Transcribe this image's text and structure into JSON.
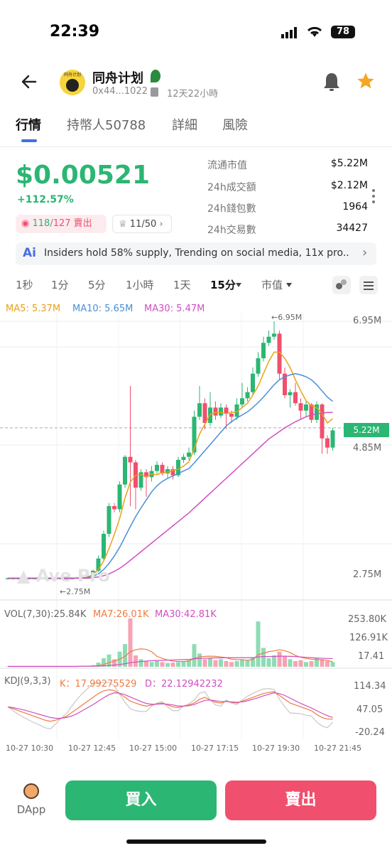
{
  "status": {
    "time": "22:39",
    "battery": "78"
  },
  "header": {
    "title": "同舟计划",
    "address": "0x44...1022",
    "age": "12天22小時",
    "logo_text": "同舟计划"
  },
  "tabs": [
    "行情",
    "持幣人50788",
    "詳細",
    "風險"
  ],
  "price": {
    "value": "$0.00521",
    "change": "+112.57%"
  },
  "trades": {
    "buy": "118",
    "separator": "/",
    "sell": "127",
    "sell_label": "賣出",
    "holders": "11/50"
  },
  "stats": [
    {
      "label": "流通市值",
      "value": "$5.22M"
    },
    {
      "label": "24h成交額",
      "value": "$2.12M"
    },
    {
      "label": "24h錢包數",
      "value": "1964"
    },
    {
      "label": "24h交易數",
      "value": "34427"
    }
  ],
  "ai_text": "Insiders hold 58% supply, Trending on social media, 11x pro...",
  "ai_label": "Ai",
  "timeframes": [
    "1秒",
    "1分",
    "5分",
    "1小時",
    "1天",
    "15分",
    "市值"
  ],
  "ma": {
    "ma5": "MA5: 5.37M",
    "ma10": "MA10: 5.65M",
    "ma30": "MA30: 5.47M"
  },
  "colors": {
    "up": "#2bb673",
    "down": "#f0506e",
    "ma5": "#e8a317",
    "ma10": "#4a8fd6",
    "ma30": "#d04fc2"
  },
  "chart_data": {
    "type": "candlestick",
    "y_axis": [
      "6.95M",
      "4.85M",
      "2.75M"
    ],
    "current_price_label": "5.22M",
    "high_marker": "←6.95M",
    "low_marker": "←2.75M",
    "watermark": "Ave Pro",
    "candles": [
      [
        2.78,
        2.78,
        2.79,
        2.77
      ],
      [
        2.78,
        2.78,
        2.79,
        2.77
      ],
      [
        2.78,
        2.78,
        2.79,
        2.77
      ],
      [
        2.78,
        2.78,
        2.79,
        2.77
      ],
      [
        2.78,
        2.78,
        2.79,
        2.77
      ],
      [
        2.78,
        2.78,
        2.79,
        2.77
      ],
      [
        2.78,
        2.78,
        2.79,
        2.77
      ],
      [
        2.78,
        2.78,
        2.79,
        2.77
      ],
      [
        2.78,
        2.78,
        2.79,
        2.77
      ],
      [
        2.78,
        2.78,
        2.79,
        2.77
      ],
      [
        2.78,
        2.78,
        2.79,
        2.77
      ],
      [
        2.78,
        2.78,
        2.79,
        2.77
      ],
      [
        2.78,
        2.78,
        2.79,
        2.77
      ],
      [
        2.78,
        2.79,
        2.8,
        2.77
      ],
      [
        2.79,
        2.8,
        2.81,
        2.78
      ],
      [
        2.8,
        2.82,
        2.83,
        2.79
      ],
      [
        2.82,
        2.9,
        2.92,
        2.8
      ],
      [
        2.9,
        3.1,
        3.15,
        2.88
      ],
      [
        3.1,
        3.5,
        3.55,
        3.05
      ],
      [
        3.5,
        3.95,
        4.0,
        3.45
      ],
      [
        3.95,
        3.9,
        4.0,
        3.85
      ],
      [
        3.9,
        4.3,
        4.35,
        3.85
      ],
      [
        4.3,
        4.75,
        4.78,
        4.25
      ],
      [
        4.75,
        4.66,
        5.9,
        3.95
      ],
      [
        4.66,
        4.25,
        4.7,
        3.9
      ],
      [
        4.25,
        4.5,
        4.55,
        4.2
      ],
      [
        4.5,
        4.42,
        4.55,
        4.1
      ],
      [
        4.42,
        4.52,
        4.6,
        4.35
      ],
      [
        4.52,
        4.62,
        4.68,
        4.48
      ],
      [
        4.62,
        4.48,
        4.66,
        4.45
      ],
      [
        4.48,
        4.55,
        4.6,
        4.4
      ],
      [
        4.55,
        4.45,
        4.6,
        4.38
      ],
      [
        4.45,
        4.7,
        4.75,
        4.42
      ],
      [
        4.7,
        4.75,
        4.8,
        4.65
      ],
      [
        4.75,
        4.82,
        4.9,
        4.7
      ],
      [
        4.82,
        5.4,
        5.5,
        4.78
      ],
      [
        5.4,
        5.62,
        5.9,
        5.35
      ],
      [
        5.62,
        5.3,
        5.7,
        5.2
      ],
      [
        5.3,
        5.55,
        5.8,
        5.25
      ],
      [
        5.55,
        5.42,
        5.65,
        5.35
      ],
      [
        5.42,
        5.55,
        5.62,
        5.38
      ],
      [
        5.55,
        5.45,
        5.6,
        5.2
      ],
      [
        5.45,
        5.4,
        5.5,
        5.3
      ],
      [
        5.4,
        5.6,
        5.7,
        5.35
      ],
      [
        5.6,
        5.7,
        5.95,
        5.55
      ],
      [
        5.7,
        5.8,
        5.88,
        5.65
      ],
      [
        5.8,
        6.1,
        6.2,
        5.75
      ],
      [
        6.1,
        6.35,
        6.45,
        6.05
      ],
      [
        6.35,
        6.6,
        6.7,
        6.3
      ],
      [
        6.6,
        6.7,
        6.8,
        6.55
      ],
      [
        6.7,
        6.75,
        6.95,
        6.65
      ],
      [
        6.75,
        6.1,
        6.8,
        6.0
      ],
      [
        6.1,
        5.75,
        6.2,
        5.7
      ],
      [
        5.75,
        5.8,
        5.85,
        5.55
      ],
      [
        5.8,
        5.62,
        5.95,
        5.58
      ],
      [
        5.62,
        5.5,
        5.7,
        5.35
      ],
      [
        5.5,
        5.6,
        5.65,
        5.4
      ],
      [
        5.6,
        5.35,
        5.62,
        5.3
      ],
      [
        5.35,
        5.6,
        5.65,
        5.3
      ],
      [
        5.6,
        5.05,
        5.62,
        4.8
      ],
      [
        5.05,
        4.9,
        5.1,
        4.8
      ],
      [
        4.9,
        5.18,
        5.22,
        4.85
      ]
    ],
    "ma5": [
      2.78,
      2.78,
      2.78,
      2.78,
      2.78,
      2.78,
      2.78,
      2.78,
      2.78,
      2.78,
      2.78,
      2.78,
      2.78,
      2.78,
      2.79,
      2.8,
      2.84,
      2.92,
      3.06,
      3.26,
      3.49,
      3.75,
      4.08,
      4.34,
      4.45,
      4.46,
      4.43,
      4.47,
      4.46,
      4.5,
      4.5,
      4.53,
      4.55,
      4.6,
      4.67,
      4.88,
      5.12,
      5.28,
      5.44,
      5.47,
      5.47,
      5.45,
      5.47,
      5.48,
      5.55,
      5.62,
      5.75,
      5.9,
      6.1,
      6.3,
      6.45,
      6.45,
      6.35,
      6.2,
      6.0,
      5.82,
      5.66,
      5.58,
      5.55,
      5.45,
      5.3,
      5.37
    ],
    "ma10": [
      2.78,
      2.78,
      2.78,
      2.78,
      2.78,
      2.78,
      2.78,
      2.78,
      2.78,
      2.78,
      2.78,
      2.78,
      2.78,
      2.78,
      2.78,
      2.79,
      2.81,
      2.85,
      2.92,
      3.02,
      3.14,
      3.28,
      3.45,
      3.62,
      3.78,
      3.92,
      4.05,
      4.18,
      4.28,
      4.35,
      4.4,
      4.44,
      4.48,
      4.52,
      4.56,
      4.65,
      4.75,
      4.85,
      4.95,
      5.05,
      5.15,
      5.25,
      5.32,
      5.38,
      5.43,
      5.48,
      5.55,
      5.63,
      5.72,
      5.82,
      5.92,
      6.0,
      6.05,
      6.08,
      6.1,
      6.08,
      6.05,
      6.0,
      5.92,
      5.82,
      5.72,
      5.65
    ],
    "ma30": [
      2.78,
      2.78,
      2.78,
      2.78,
      2.78,
      2.78,
      2.78,
      2.78,
      2.78,
      2.78,
      2.78,
      2.78,
      2.78,
      2.78,
      2.78,
      2.78,
      2.79,
      2.8,
      2.82,
      2.85,
      2.89,
      2.94,
      3.0,
      3.07,
      3.14,
      3.21,
      3.28,
      3.35,
      3.42,
      3.49,
      3.56,
      3.63,
      3.7,
      3.77,
      3.84,
      3.92,
      4.0,
      4.08,
      4.16,
      4.24,
      4.32,
      4.4,
      4.48,
      4.56,
      4.64,
      4.72,
      4.8,
      4.88,
      4.96,
      5.04,
      5.1,
      5.16,
      5.22,
      5.27,
      5.32,
      5.36,
      5.4,
      5.43,
      5.45,
      5.46,
      5.47,
      5.47
    ],
    "volume": {
      "label": "VOL(7,30):25.84K",
      "ma7": "MA7:26.01K",
      "ma30": "MA30:42.81K",
      "y_axis": [
        "253.80K",
        "126.91K",
        "17.41"
      ],
      "values": [
        2,
        2,
        2,
        2,
        2,
        2,
        2,
        2,
        2,
        2,
        2,
        2,
        2,
        3,
        3,
        4,
        8,
        22,
        45,
        65,
        40,
        80,
        120,
        256,
        60,
        40,
        30,
        25,
        30,
        25,
        20,
        22,
        25,
        30,
        35,
        120,
        70,
        40,
        45,
        35,
        40,
        30,
        25,
        30,
        40,
        35,
        50,
        240,
        100,
        45,
        60,
        80,
        55,
        40,
        30,
        35,
        25,
        30,
        45,
        40,
        30,
        25
      ],
      "ma7_line": [
        2,
        2,
        2,
        2,
        2,
        2,
        2,
        2,
        2,
        2,
        2,
        2,
        2,
        2,
        3,
        3,
        4,
        6,
        12,
        22,
        30,
        40,
        55,
        80,
        90,
        95,
        92,
        80,
        55,
        45,
        36,
        30,
        28,
        28,
        30,
        45,
        52,
        55,
        56,
        55,
        52,
        48,
        40,
        38,
        37,
        35,
        38,
        64,
        72,
        80,
        84,
        90,
        85,
        75,
        60,
        50,
        44,
        40,
        38,
        37,
        34,
        26
      ],
      "ma30_line": [
        2,
        2,
        2,
        2,
        2,
        2,
        2,
        2,
        2,
        2,
        2,
        2,
        2,
        2,
        3,
        3,
        3,
        4,
        5,
        7,
        9,
        12,
        16,
        22,
        25,
        28,
        30,
        32,
        33,
        34,
        35,
        36,
        37,
        38,
        39,
        42,
        44,
        45,
        46,
        47,
        47,
        48,
        48,
        48,
        48,
        48,
        48,
        52,
        54,
        54,
        55,
        56,
        56,
        55,
        54,
        52,
        50,
        48,
        46,
        45,
        44,
        43
      ]
    },
    "kdj": {
      "label": "KDJ(9,3,3)",
      "k": "K：17.99275529",
      "d": "D：22.12942232",
      "y_axis": [
        "114.34",
        "47.05",
        "-20.24"
      ],
      "k_line": [
        50,
        45,
        40,
        35,
        30,
        25,
        20,
        15,
        12,
        15,
        20,
        25,
        35,
        45,
        55,
        65,
        75,
        85,
        92,
        95,
        93,
        85,
        75,
        65,
        60,
        55,
        52,
        55,
        58,
        60,
        55,
        50,
        48,
        52,
        55,
        60,
        70,
        75,
        68,
        62,
        60,
        65,
        62,
        60,
        65,
        70,
        75,
        80,
        85,
        88,
        90,
        80,
        70,
        60,
        55,
        50,
        45,
        40,
        30,
        22,
        18,
        18
      ],
      "d_line": [
        50,
        48,
        45,
        42,
        38,
        34,
        30,
        26,
        22,
        20,
        20,
        22,
        26,
        32,
        40,
        48,
        56,
        65,
        74,
        82,
        87,
        86,
        82,
        76,
        70,
        64,
        59,
        57,
        57,
        58,
        57,
        55,
        52,
        52,
        53,
        56,
        62,
        67,
        68,
        66,
        64,
        64,
        63,
        62,
        63,
        66,
        70,
        74,
        79,
        83,
        87,
        85,
        80,
        73,
        66,
        59,
        53,
        47,
        40,
        33,
        27,
        22
      ],
      "j_line": [
        50,
        40,
        30,
        22,
        15,
        8,
        2,
        -5,
        -8,
        5,
        20,
        32,
        52,
        70,
        85,
        98,
        112,
        114,
        114,
        114,
        105,
        83,
        62,
        45,
        40,
        38,
        38,
        52,
        60,
        64,
        50,
        40,
        40,
        52,
        58,
        68,
        86,
        90,
        68,
        55,
        52,
        68,
        60,
        56,
        68,
        78,
        85,
        92,
        97,
        98,
        96,
        70,
        50,
        34,
        33,
        32,
        28,
        26,
        10,
        0,
        -5,
        10
      ]
    },
    "x_axis": [
      "10-27 10:30",
      "10-27 12:45",
      "10-27 15:00",
      "10-27 17:15",
      "10-27 19:30",
      "10-27 21:45"
    ]
  },
  "bottom": {
    "dapp": "DApp",
    "buy": "買入",
    "sell": "賣出"
  }
}
